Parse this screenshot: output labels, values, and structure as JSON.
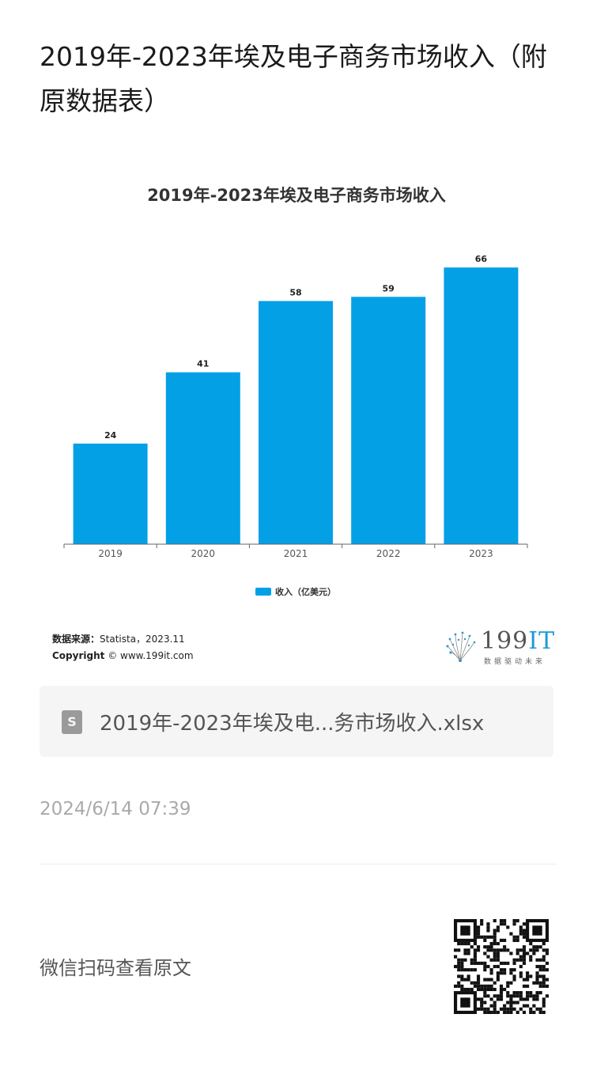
{
  "page": {
    "title": "2019年-2023年埃及电子商务市场收入（附原数据表）"
  },
  "chart_data": {
    "type": "bar",
    "title": "2019年-2023年埃及电子商务市场收入",
    "categories": [
      "2019",
      "2020",
      "2021",
      "2022",
      "2023"
    ],
    "series": [
      {
        "name": "收入（亿美元）",
        "values": [
          24,
          41,
          58,
          59,
          66
        ]
      }
    ],
    "data_labels": [
      "24",
      "41",
      "58",
      "59",
      "66"
    ],
    "ylim": [
      0,
      70
    ],
    "grid": false,
    "legend_position": "bottom-center",
    "bar_color": "#03a0e6"
  },
  "source": {
    "label": "数据来源：",
    "value": "Statista，2023.11",
    "copyright_label": "Copyright",
    "copyright_value": "© www.199it.com"
  },
  "logo": {
    "number": "199",
    "it": "IT",
    "tagline": "数据驱动未来"
  },
  "attachment": {
    "icon": "spreadsheet-file-icon",
    "icon_letter": "S",
    "file_name": "2019年-2023年埃及电...务市场收入.xlsx"
  },
  "footer": {
    "timestamp": "2024/6/14 07:39",
    "scan_text": "微信扫码查看原文",
    "qr_icon": "qr-code-icon"
  }
}
